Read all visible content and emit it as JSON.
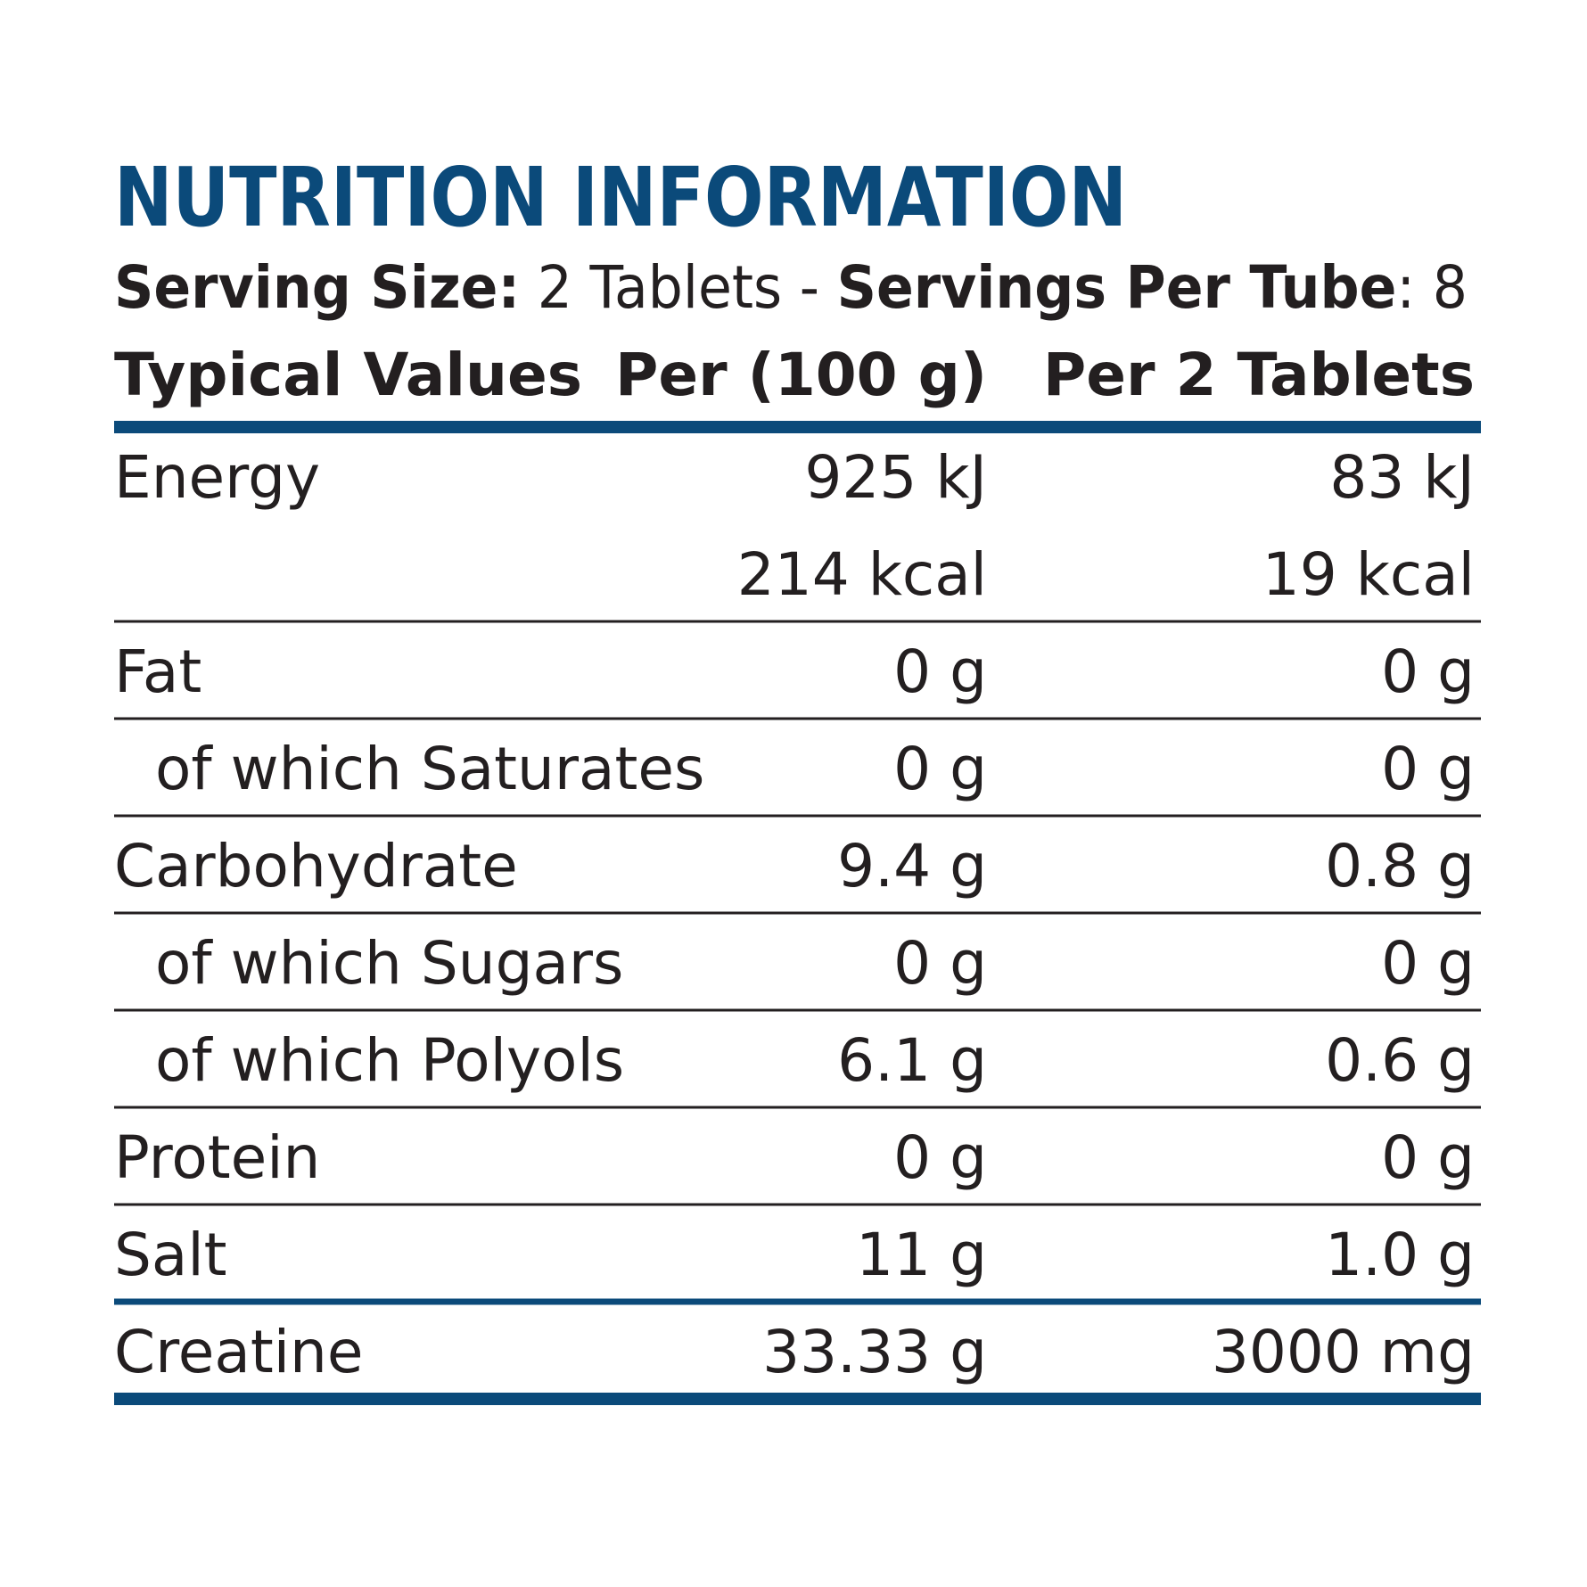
{
  "title": "NUTRITION INFORMATION",
  "serving": {
    "size_label": "Serving Size:",
    "size_value": " 2 Tablets - ",
    "servings_label": "Servings Per Tube",
    "servings_value": ": 8"
  },
  "table": {
    "header": [
      "Typical Values",
      "Per (100 g)",
      "Per 2 Tablets"
    ],
    "rows": [
      {
        "label": "Energy",
        "per_100g": [
          "925 kJ",
          "214 kcal"
        ],
        "per_serving": [
          "83 kJ",
          "19 kcal"
        ]
      },
      {
        "label": "Fat",
        "per_100g": [
          "0 g"
        ],
        "per_serving": [
          "0 g"
        ]
      },
      {
        "label": "of which Saturates",
        "indent": true,
        "per_100g": [
          "0 g"
        ],
        "per_serving": [
          "0 g"
        ]
      },
      {
        "label": "Carbohydrate",
        "per_100g": [
          "9.4 g"
        ],
        "per_serving": [
          "0.8 g"
        ]
      },
      {
        "label": "of which Sugars",
        "indent": true,
        "per_100g": [
          "0 g"
        ],
        "per_serving": [
          "0 g"
        ]
      },
      {
        "label": "of which Polyols",
        "indent": true,
        "per_100g": [
          "6.1 g"
        ],
        "per_serving": [
          "0.6 g"
        ]
      },
      {
        "label": "Protein",
        "per_100g": [
          "0 g"
        ],
        "per_serving": [
          "0 g"
        ]
      },
      {
        "label": "Salt",
        "per_100g": [
          "11 g"
        ],
        "per_serving": [
          "1.0 g"
        ]
      },
      {
        "label": "Creatine",
        "per_100g": [
          "33.33 g"
        ],
        "per_serving": [
          "3000 mg"
        ]
      }
    ]
  }
}
